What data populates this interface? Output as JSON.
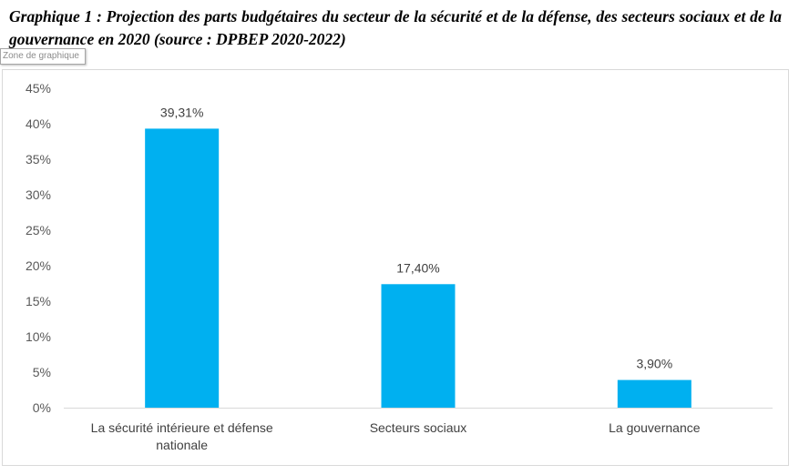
{
  "caption": "Graphique 1 : Projection des parts budgétaires du secteur de la sécurité et de la défense, des secteurs sociaux et de la gouvernance en 2020 (source : DPBEP 2020-2022)",
  "tooltip": "Zone de graphique",
  "chart_data": {
    "type": "bar",
    "categories": [
      [
        "La sécurité intérieure et défense",
        "nationale"
      ],
      [
        "Secteurs sociaux"
      ],
      [
        "La gouvernance"
      ]
    ],
    "values": [
      39.31,
      17.4,
      3.9
    ],
    "data_labels": [
      "39,31%",
      "17,40%",
      "3,90%"
    ],
    "ylim": [
      0,
      45
    ],
    "yticks": [
      0,
      5,
      10,
      15,
      20,
      25,
      30,
      35,
      40,
      45
    ],
    "ytick_labels": [
      "0%",
      "5%",
      "10%",
      "15%",
      "20%",
      "25%",
      "30%",
      "35%",
      "40%",
      "45%"
    ],
    "grid": false,
    "legend": "none",
    "bar_color": "#00b0f0",
    "axis_color": "#d9d9d9"
  }
}
